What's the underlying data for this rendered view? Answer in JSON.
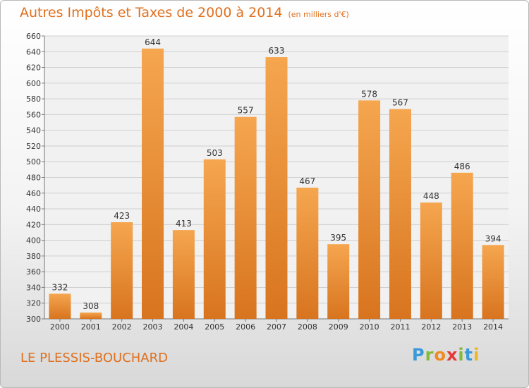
{
  "title": "Autres Impôts et Taxes de 2000 à 2014",
  "unit_label": "(en milliers d'€)",
  "location": "LE PLESSIS-BOUCHARD",
  "logo": {
    "text": "Proxiti"
  },
  "colors": {
    "bar_light": "#f5a64f",
    "bar_dark": "#d8741f",
    "title": "#e0701e",
    "grid": "#d0d0d0"
  },
  "chart_data": {
    "type": "bar",
    "title": "Autres Impôts et Taxes de 2000 à 2014",
    "ylabel": "",
    "xlabel": "",
    "categories": [
      "2000",
      "2001",
      "2002",
      "2003",
      "2004",
      "2005",
      "2006",
      "2007",
      "2008",
      "2009",
      "2010",
      "2011",
      "2012",
      "2013",
      "2014"
    ],
    "values": [
      332,
      308,
      423,
      644,
      413,
      503,
      557,
      633,
      467,
      395,
      578,
      567,
      448,
      486,
      394
    ],
    "ylim": [
      300,
      660
    ],
    "yticks": [
      300,
      320,
      340,
      360,
      380,
      400,
      420,
      440,
      460,
      480,
      500,
      520,
      540,
      560,
      580,
      600,
      620,
      640,
      660
    ],
    "grid": true,
    "legend": "none"
  }
}
